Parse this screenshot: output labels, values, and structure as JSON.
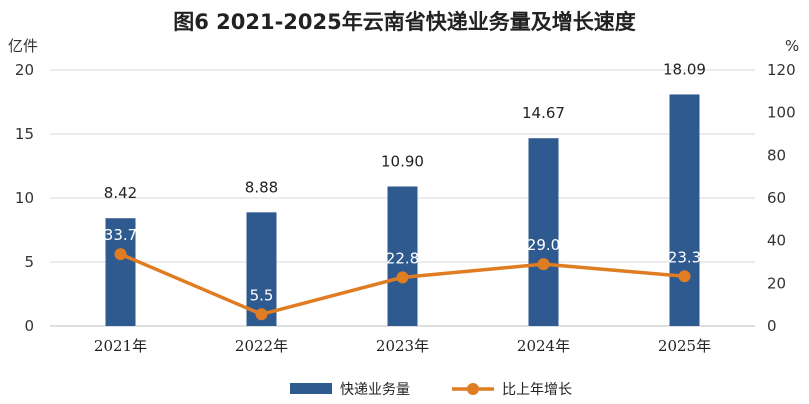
{
  "chart_data": {
    "type": "bar",
    "title": "图6  2021-2025年云南省快递业务量及增长速度",
    "categories": [
      "2021年",
      "2022年",
      "2023年",
      "2024年",
      "2025年"
    ],
    "series": [
      {
        "name": "快递业务量",
        "type": "bar",
        "axis": "left",
        "values": [
          8.42,
          8.88,
          10.9,
          14.67,
          18.09
        ],
        "color": "#2f5a8f"
      },
      {
        "name": "比上年增长",
        "type": "line",
        "axis": "right",
        "values": [
          33.7,
          5.5,
          22.8,
          29.0,
          23.3
        ],
        "color": "#e07c22"
      }
    ],
    "bar_labels": [
      "8.42",
      "8.88",
      "10.90",
      "14.67",
      "18.09"
    ],
    "line_labels": [
      "33.7",
      "5.5",
      "22.8",
      "29.0",
      "23.3"
    ],
    "left_axis": {
      "unit": "亿件",
      "ylim": [
        0,
        20
      ],
      "ticks": [
        "0",
        "5",
        "10",
        "15",
        "20"
      ]
    },
    "right_axis": {
      "unit": "%",
      "ylim": [
        0,
        120
      ],
      "ticks": [
        "0",
        "20",
        "40",
        "60",
        "80",
        "100",
        "120"
      ]
    },
    "grid": true,
    "legend": "bottom"
  }
}
